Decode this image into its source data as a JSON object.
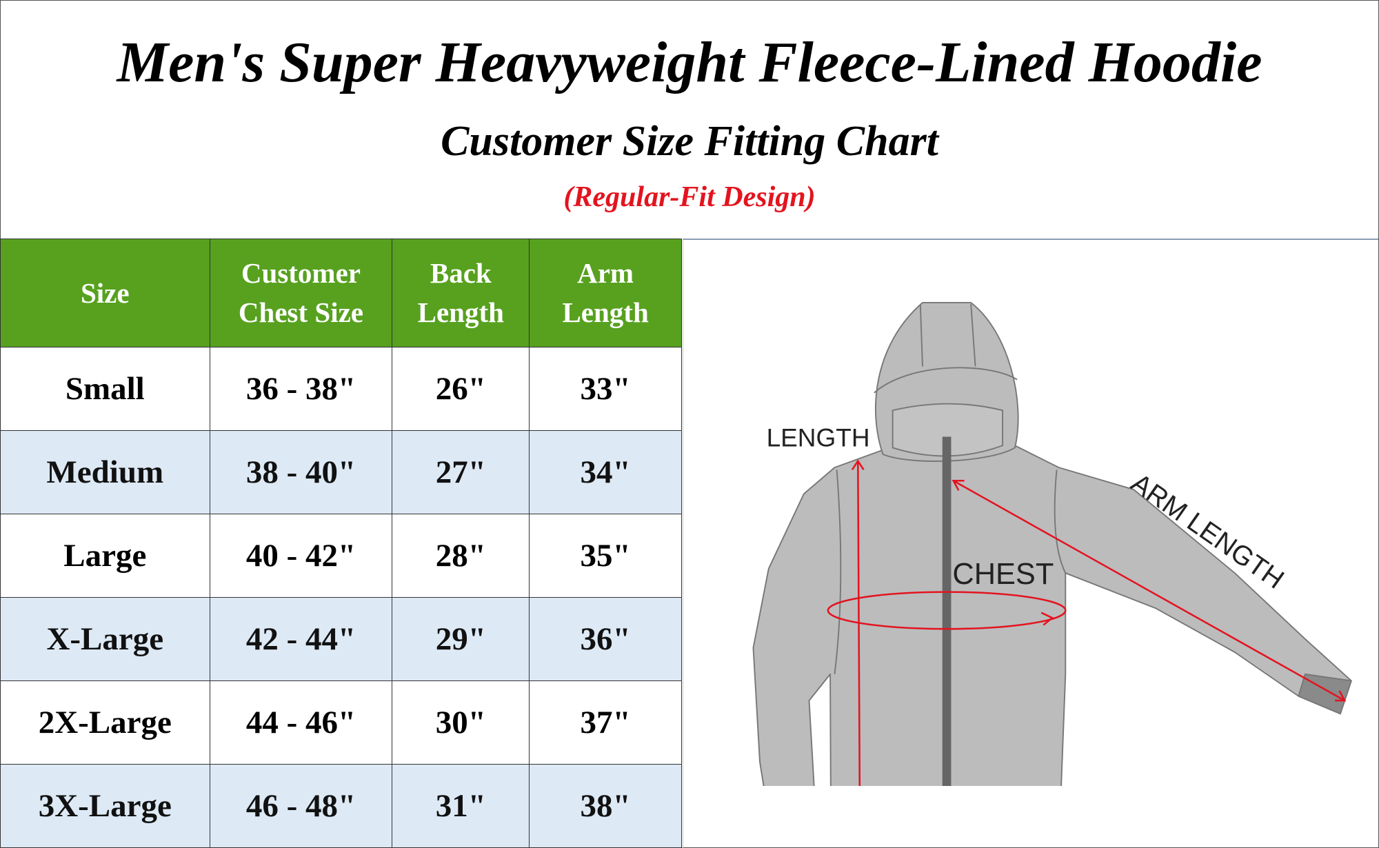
{
  "header": {
    "title": "Men's Super Heavyweight Fleece-Lined Hoodie",
    "subtitle": "Customer Size Fitting Chart",
    "note": "(Regular-Fit Design)"
  },
  "table": {
    "columns": [
      "Size",
      "Customer Chest Size",
      "Back Length",
      "Arm Length"
    ],
    "rows": [
      [
        "Small",
        "36 - 38\"",
        "26\"",
        "33\""
      ],
      [
        "Medium",
        "38 - 40\"",
        "27\"",
        "34\""
      ],
      [
        "Large",
        "40 - 42\"",
        "28\"",
        "35\""
      ],
      [
        "X-Large",
        "42 - 44\"",
        "29\"",
        "36\""
      ],
      [
        "2X-Large",
        "44 - 46\"",
        "30\"",
        "37\""
      ],
      [
        "3X-Large",
        "46 - 48\"",
        "31\"",
        "38\""
      ]
    ]
  },
  "diagram": {
    "labels": {
      "length": "LENGTH",
      "chest": "CHEST",
      "arm": "ARM LENGTH"
    },
    "colors": {
      "header_green": "#57a11f",
      "alt_row": "#dde9f5",
      "measure_red": "#e3141f",
      "garment": "#bcbcbd"
    }
  }
}
